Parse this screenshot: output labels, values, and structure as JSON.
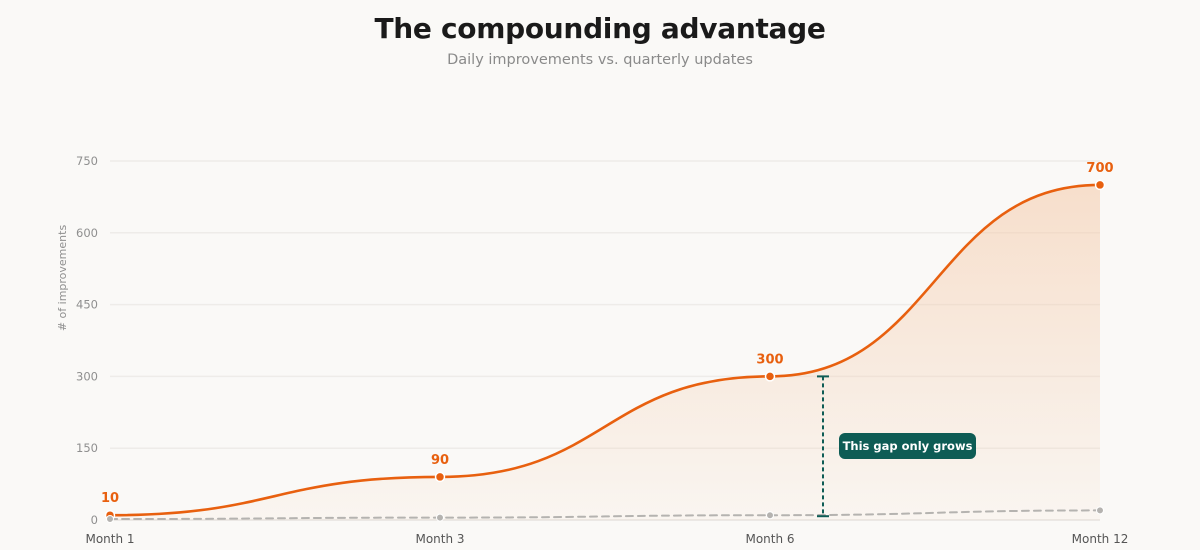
{
  "chart_data": {
    "type": "line",
    "title": "The compounding advantage",
    "subtitle": "Daily improvements vs. quarterly updates",
    "xlabel": "",
    "ylabel": "# of improvements",
    "categories": [
      "Month 1",
      "Month 3",
      "Month 6",
      "Month 12"
    ],
    "ylim": [
      0,
      750
    ],
    "yticks": [
      0,
      150,
      300,
      450,
      600,
      750
    ],
    "grid": true,
    "legend": "none",
    "series": [
      {
        "id": "daily",
        "values": [
          10,
          90,
          300,
          700
        ],
        "color": "#e8600f",
        "style": "solid",
        "area": true,
        "data_labels": [
          "10",
          "90",
          "300",
          "700"
        ]
      },
      {
        "id": "quarterly",
        "values": [
          2,
          5,
          10,
          20
        ],
        "color": "#b5b3b0",
        "style": "dashed",
        "area": false
      }
    ],
    "annotation": {
      "text": "This gap only grows",
      "color": "#0e5c55",
      "from_value": 300,
      "to_value": 10
    }
  }
}
